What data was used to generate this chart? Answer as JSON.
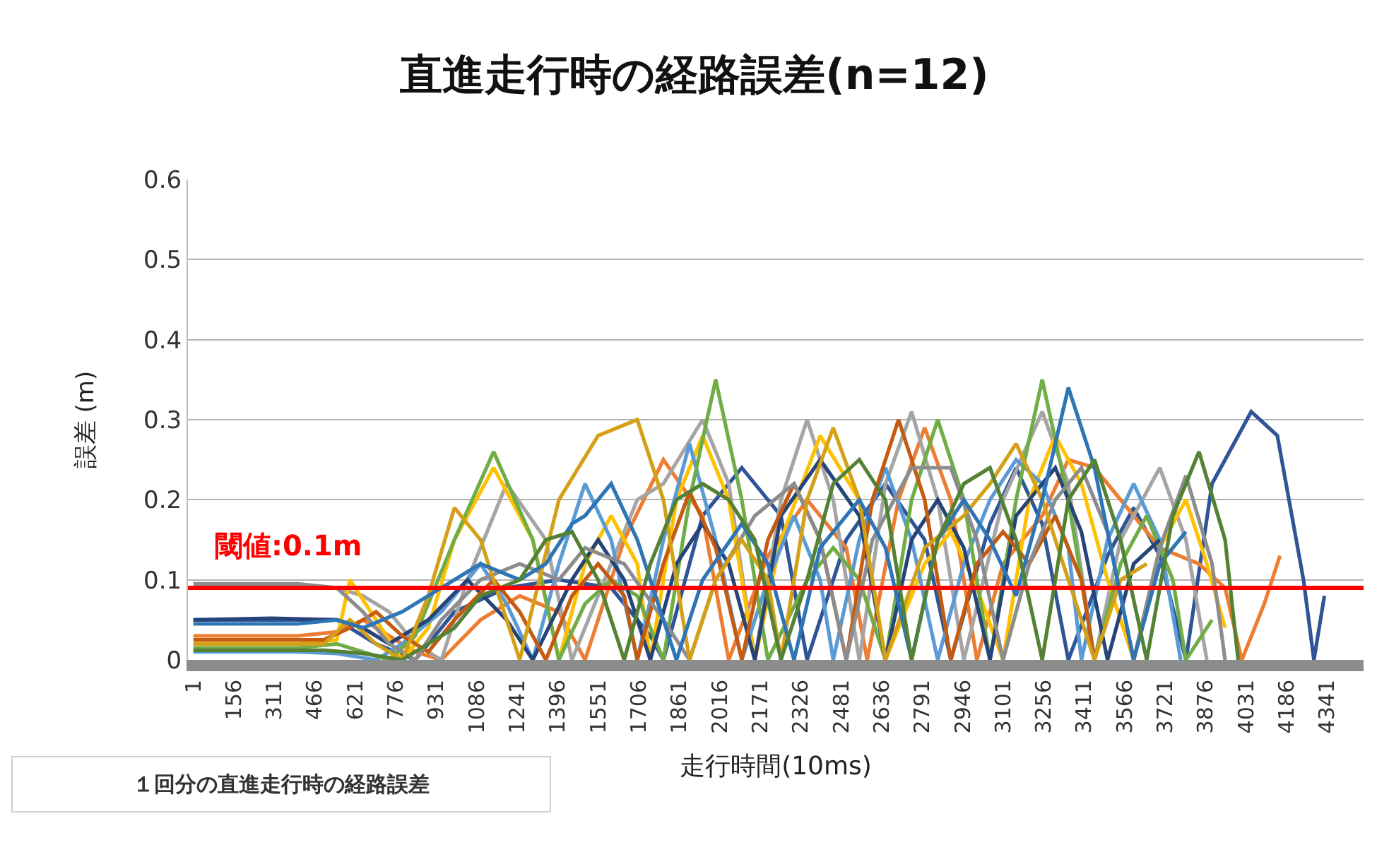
{
  "chart_data": {
    "type": "line",
    "title": "直進走行時の経路誤差(n=12)",
    "xlabel": "走行時間(10ms)",
    "ylabel": "誤差 (m)",
    "xlim": [
      -20,
      4480
    ],
    "xticks": [
      1,
      156,
      311,
      466,
      621,
      776,
      931,
      1086,
      1241,
      1396,
      1551,
      1706,
      1861,
      2016,
      2171,
      2326,
      2481,
      2636,
      2791,
      2946,
      3101,
      3256,
      3411,
      3566,
      3721,
      3876,
      4031,
      4186,
      4341
    ],
    "ylim": [
      0,
      0.6
    ],
    "yticks": [
      0,
      0.1,
      0.2,
      0.3,
      0.4,
      0.5,
      0.6
    ],
    "grid": "y",
    "marker": "none",
    "line_style": "solid",
    "ref_lines": [
      {
        "axis": "y",
        "value": 0.09,
        "label": "閾値:0.1m",
        "color": "#ff0000"
      }
    ],
    "annotations": [
      "１回分の直進走行時の経路誤差"
    ],
    "series": [
      {
        "color": "#2f5597",
        "x": [
          1,
          300,
          550,
          700,
          850,
          1000,
          1200,
          1400,
          1600,
          1750,
          1800,
          1950,
          2100,
          2250,
          2350,
          2500,
          2650,
          2800,
          2900,
          3050,
          3150,
          3250,
          3350,
          3500,
          3600,
          3700,
          3800,
          3900,
          4050,
          4150,
          4250,
          4290,
          4330
        ],
        "values": [
          0.05,
          0.05,
          0.05,
          0.02,
          0,
          0.06,
          0.09,
          0.1,
          0.09,
          0.03,
          0,
          0.18,
          0.24,
          0.18,
          0,
          0.15,
          0.22,
          0.15,
          0,
          0.17,
          0.24,
          0.17,
          0,
          0.13,
          0.19,
          0.13,
          0,
          0.22,
          0.31,
          0.28,
          0.1,
          0,
          0.08
        ]
      },
      {
        "color": "#ed7d31",
        "x": [
          1,
          400,
          550,
          650,
          750,
          850,
          950,
          1100,
          1250,
          1400,
          1500,
          1650,
          1800,
          1950,
          2050,
          2200,
          2350,
          2500,
          2580,
          2700,
          2800,
          2900,
          3000,
          3100,
          3250,
          3350,
          3450,
          3600,
          3700,
          3850,
          3950,
          4014,
          4100,
          4160
        ],
        "values": [
          0.03,
          0.03,
          0.035,
          0.05,
          0.03,
          0.01,
          0,
          0.05,
          0.08,
          0.06,
          0,
          0.15,
          0.25,
          0.18,
          0,
          0.13,
          0.2,
          0.14,
          0,
          0.2,
          0.29,
          0.2,
          0,
          0.12,
          0.18,
          0.25,
          0.24,
          0.18,
          0.14,
          0.12,
          0.09,
          0,
          0.07,
          0.13
        ]
      },
      {
        "color": "#a5a5a5",
        "x": [
          1,
          400,
          550,
          650,
          750,
          850,
          950,
          1050,
          1200,
          1350,
          1450,
          1550,
          1700,
          1800,
          1950,
          2050,
          2150,
          2250,
          2350,
          2450,
          2550,
          2650,
          2750,
          2850,
          2950,
          3100,
          3250,
          3350,
          3450,
          3550,
          3700,
          3800,
          3880
        ],
        "values": [
          0.09,
          0.09,
          0.09,
          0.08,
          0.06,
          0.02,
          0,
          0.1,
          0.22,
          0.15,
          0,
          0.08,
          0.2,
          0.22,
          0.3,
          0.22,
          0,
          0.2,
          0.3,
          0.2,
          0,
          0.22,
          0.31,
          0.2,
          0,
          0.2,
          0.31,
          0.22,
          0,
          0.15,
          0.24,
          0.15,
          0
        ]
      },
      {
        "color": "#ffc000",
        "x": [
          1,
          400,
          550,
          600,
          700,
          800,
          900,
          1000,
          1150,
          1300,
          1400,
          1500,
          1600,
          1700,
          1750,
          1850,
          1950,
          2050,
          2150,
          2250,
          2400,
          2550,
          2650,
          2800,
          2900,
          3000,
          3100,
          3200,
          3300,
          3400,
          3500,
          3600,
          3700,
          3800,
          3880,
          3950
        ],
        "values": [
          0.02,
          0.02,
          0.025,
          0.1,
          0.05,
          0,
          0.04,
          0.15,
          0.24,
          0.15,
          0,
          0.12,
          0.18,
          0.12,
          0,
          0.2,
          0.28,
          0.2,
          0,
          0.15,
          0.28,
          0.2,
          0,
          0.12,
          0.16,
          0.09,
          0,
          0.2,
          0.28,
          0.22,
          0.1,
          0,
          0.14,
          0.2,
          0.12,
          0.04
        ]
      },
      {
        "color": "#5b9bd5",
        "x": [
          1,
          400,
          550,
          700,
          800,
          950,
          1100,
          1200,
          1300,
          1400,
          1500,
          1600,
          1700,
          1800,
          1900,
          2000,
          2100,
          2200,
          2300,
          2400,
          2450,
          2550,
          2650,
          2750,
          2850,
          2950,
          3050,
          3150,
          3250,
          3350,
          3400,
          3500,
          3600,
          3700,
          3780
        ],
        "values": [
          0.01,
          0.01,
          0.008,
          0,
          0.02,
          0.06,
          0.12,
          0.07,
          0,
          0.12,
          0.22,
          0.15,
          0,
          0.15,
          0.27,
          0.15,
          0,
          0.1,
          0.18,
          0.1,
          0,
          0.15,
          0.24,
          0.15,
          0,
          0.12,
          0.2,
          0.25,
          0.22,
          0.14,
          0,
          0.15,
          0.22,
          0.15,
          0
        ]
      },
      {
        "color": "#70ad47",
        "x": [
          1,
          400,
          550,
          650,
          750,
          850,
          1000,
          1150,
          1300,
          1400,
          1500,
          1600,
          1700,
          1800,
          1900,
          2000,
          2100,
          2200,
          2350,
          2450,
          2550,
          2650,
          2750,
          2850,
          2950,
          3050,
          3150,
          3250,
          3350,
          3450,
          3550,
          3650,
          3750,
          3800,
          3900
        ],
        "values": [
          0.015,
          0.015,
          0.02,
          0.01,
          0,
          0.03,
          0.15,
          0.26,
          0.15,
          0,
          0.07,
          0.1,
          0.08,
          0,
          0.2,
          0.35,
          0.2,
          0,
          0.1,
          0.14,
          0.1,
          0,
          0.2,
          0.3,
          0.2,
          0,
          0.2,
          0.35,
          0.2,
          0,
          0.12,
          0.18,
          0.1,
          0,
          0.05
        ]
      },
      {
        "color": "#264478",
        "x": [
          1,
          300,
          550,
          650,
          750,
          900,
          1050,
          1200,
          1300,
          1450,
          1550,
          1650,
          1750,
          1850,
          1950,
          2050,
          2150,
          2250,
          2400,
          2550,
          2650,
          2750,
          2850,
          2950,
          3050,
          3150,
          3300,
          3400,
          3500,
          3600,
          3700
        ],
        "values": [
          0.05,
          0.052,
          0.05,
          0.04,
          0.02,
          0.05,
          0.1,
          0.05,
          0,
          0.1,
          0.15,
          0.1,
          0,
          0.12,
          0.17,
          0.12,
          0,
          0.18,
          0.25,
          0.18,
          0,
          0.15,
          0.2,
          0.14,
          0,
          0.18,
          0.24,
          0.16,
          0,
          0.12,
          0.15
        ]
      },
      {
        "color": "#c55a11",
        "x": [
          1,
          500,
          600,
          700,
          800,
          900,
          1000,
          1150,
          1250,
          1350,
          1450,
          1550,
          1650,
          1700,
          1800,
          1900,
          2000,
          2100,
          2200,
          2300,
          2400,
          2500,
          2600,
          2700,
          2800,
          2900,
          3000,
          3100,
          3200,
          3300,
          3400,
          3450
        ],
        "values": [
          0.025,
          0.025,
          0.04,
          0.06,
          0.03,
          0.01,
          0.05,
          0.1,
          0.06,
          0,
          0.08,
          0.12,
          0.08,
          0,
          0.12,
          0.21,
          0.14,
          0,
          0.15,
          0.22,
          0.15,
          0,
          0.2,
          0.3,
          0.2,
          0,
          0.12,
          0.16,
          0.12,
          0.18,
          0.1,
          0
        ]
      },
      {
        "color": "#8c8c8c",
        "x": [
          1,
          400,
          550,
          650,
          750,
          850,
          950,
          1100,
          1250,
          1400,
          1500,
          1650,
          1800,
          1900,
          2000,
          2150,
          2300,
          2400,
          2500,
          2600,
          2750,
          2900,
          3000,
          3100,
          3200,
          3300,
          3400,
          3500,
          3600,
          3700,
          3800,
          3900,
          3950
        ],
        "values": [
          0.095,
          0.095,
          0.09,
          0.06,
          0.02,
          0,
          0.05,
          0.1,
          0.12,
          0.1,
          0.14,
          0.12,
          0.05,
          0,
          0.1,
          0.18,
          0.22,
          0.15,
          0,
          0.15,
          0.24,
          0.24,
          0.15,
          0,
          0.12,
          0.2,
          0.24,
          0.16,
          0,
          0.14,
          0.23,
          0.12,
          0
        ]
      },
      {
        "color": "#d4a017",
        "x": [
          1,
          500,
          600,
          700,
          800,
          900,
          1000,
          1100,
          1200,
          1250,
          1400,
          1550,
          1700,
          1800,
          1900,
          2000,
          2100,
          2200,
          2250,
          2350,
          2450,
          2550,
          2650,
          2800,
          2950,
          3050,
          3150,
          3250,
          3350,
          3450,
          3550,
          3650
        ],
        "values": [
          0.02,
          0.02,
          0.05,
          0.02,
          0,
          0.08,
          0.19,
          0.15,
          0.05,
          0,
          0.2,
          0.28,
          0.3,
          0.2,
          0,
          0.1,
          0.15,
          0.1,
          0,
          0.2,
          0.29,
          0.2,
          0,
          0.14,
          0.18,
          0.22,
          0.27,
          0.2,
          0.1,
          0,
          0.1,
          0.12
        ]
      },
      {
        "color": "#2e75b6",
        "x": [
          1,
          400,
          550,
          650,
          800,
          950,
          1100,
          1250,
          1350,
          1450,
          1500,
          1600,
          1700,
          1800,
          1850,
          1950,
          2100,
          2200,
          2300,
          2400,
          2550,
          2650,
          2750,
          2850,
          2950,
          3050,
          3150,
          3250,
          3350,
          3450,
          3550,
          3600,
          3700,
          3800
        ],
        "values": [
          0.045,
          0.045,
          0.05,
          0.04,
          0.06,
          0.09,
          0.12,
          0.1,
          0.12,
          0.17,
          0.18,
          0.22,
          0.15,
          0.05,
          0,
          0.1,
          0.17,
          0.12,
          0,
          0.14,
          0.2,
          0.14,
          0,
          0.15,
          0.2,
          0.15,
          0.08,
          0.2,
          0.34,
          0.24,
          0.08,
          0,
          0.12,
          0.16
        ]
      },
      {
        "color": "#548235",
        "x": [
          1,
          500,
          650,
          800,
          900,
          1000,
          1100,
          1250,
          1350,
          1450,
          1550,
          1650,
          1750,
          1850,
          1950,
          2050,
          2150,
          2250,
          2350,
          2450,
          2550,
          2650,
          2750,
          2850,
          2950,
          3050,
          3150,
          3250,
          3350,
          3450,
          3550,
          3650,
          3750,
          3850,
          3950,
          4000
        ],
        "values": [
          0.012,
          0.012,
          0.008,
          0,
          0.02,
          0.04,
          0.08,
          0.1,
          0.15,
          0.16,
          0.1,
          0,
          0.12,
          0.2,
          0.22,
          0.2,
          0.15,
          0,
          0.1,
          0.22,
          0.25,
          0.2,
          0,
          0.15,
          0.22,
          0.24,
          0.15,
          0,
          0.2,
          0.25,
          0.15,
          0,
          0.18,
          0.26,
          0.15,
          0
        ]
      }
    ]
  }
}
